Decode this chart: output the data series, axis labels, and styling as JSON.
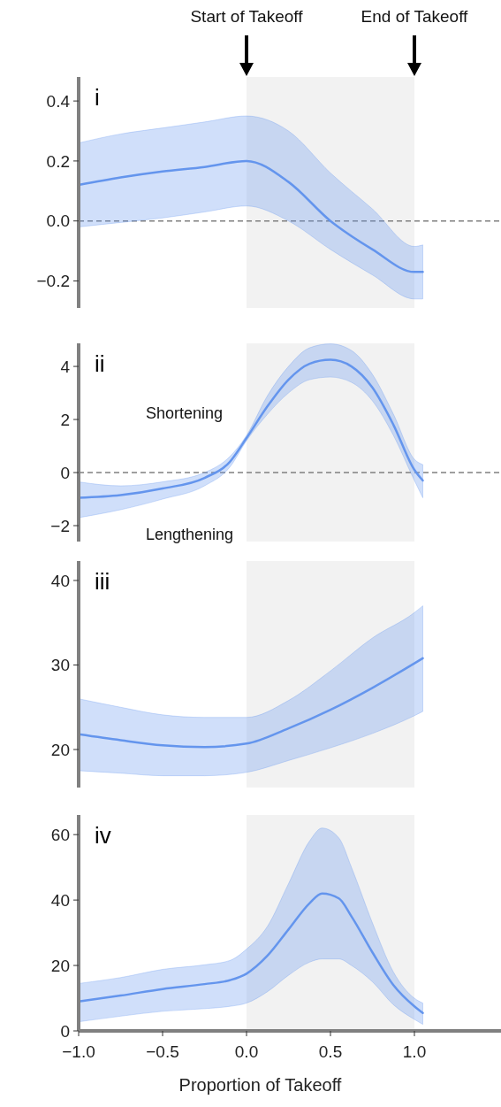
{
  "chart_data": [
    {
      "type": "line",
      "xlim": [
        -1,
        1.5
      ],
      "ylim": [
        -0.29,
        0.48
      ],
      "yticks": [
        {
          "value": -0.2,
          "label": "−0.2"
        },
        {
          "value": 0,
          "label": "0.0"
        },
        0.2,
        0.4
      ],
      "tick_labels": "y",
      "grid": false,
      "bands": [
        {
          "axis": "x",
          "from": 0,
          "to": 1,
          "color": "#f2f2f2"
        }
      ],
      "ref_lines": [
        {
          "axis": "y",
          "value": 0,
          "color": "#808080",
          "line_style": "dashed"
        }
      ],
      "annotations": [
        "i",
        "Start of Takeoff",
        "End of Takeoff"
      ],
      "series": [
        {
          "color": "#6495ed",
          "x": [
            -1,
            -0.75,
            -0.5,
            -0.25,
            0,
            0.25,
            0.5,
            0.75,
            1,
            1.05
          ],
          "values": [
            0.12,
            0.145,
            0.165,
            0.18,
            0.2,
            0.13,
            0.0,
            -0.095,
            -0.17,
            -0.17
          ],
          "upper": [
            0.26,
            0.29,
            0.31,
            0.33,
            0.35,
            0.3,
            0.16,
            0.04,
            -0.085,
            -0.08
          ],
          "lower": [
            -0.02,
            -0.005,
            0.01,
            0.03,
            0.05,
            0.0,
            -0.095,
            -0.18,
            -0.26,
            -0.26
          ]
        }
      ]
    },
    {
      "type": "line",
      "xlim": [
        -1,
        1.5
      ],
      "ylim": [
        -2.6,
        4.87
      ],
      "yticks": [
        {
          "value": -2,
          "label": "−2"
        },
        0,
        2,
        4
      ],
      "tick_labels": "y",
      "grid": false,
      "bands": [
        {
          "axis": "x",
          "from": 0,
          "to": 1,
          "color": "#f2f2f2"
        }
      ],
      "ref_lines": [
        {
          "axis": "y",
          "value": 0,
          "color": "#808080",
          "line_style": "dashed"
        }
      ],
      "annotations": [
        "ii",
        "Shortening",
        "Lengthening"
      ],
      "series": [
        {
          "color": "#6495ed",
          "x": [
            -1,
            -0.75,
            -0.5,
            -0.25,
            -0.1,
            0,
            0.125,
            0.25,
            0.375,
            0.5,
            0.625,
            0.75,
            0.875,
            1,
            1.05
          ],
          "values": [
            -0.95,
            -0.85,
            -0.6,
            -0.2,
            0.4,
            1.3,
            2.5,
            3.5,
            4.1,
            4.25,
            4.0,
            3.2,
            1.8,
            0.1,
            -0.3
          ],
          "upper": [
            -0.35,
            -0.5,
            -0.35,
            0,
            0.6,
            1.4,
            2.9,
            4.0,
            4.7,
            4.85,
            4.6,
            3.7,
            2.2,
            0.5,
            0.3
          ],
          "lower": [
            -1.7,
            -1.4,
            -1.0,
            -0.5,
            0.2,
            1.2,
            2.2,
            3.0,
            3.5,
            3.6,
            3.4,
            2.7,
            1.4,
            -0.3,
            -0.95
          ]
        }
      ]
    },
    {
      "type": "line",
      "xlim": [
        -1,
        1.5
      ],
      "ylim": [
        15.5,
        42.3
      ],
      "yticks": [
        20,
        30,
        40
      ],
      "tick_labels": "y",
      "grid": false,
      "bands": [
        {
          "axis": "x",
          "from": 0,
          "to": 1,
          "color": "#f2f2f2"
        }
      ],
      "annotations": [
        "iii"
      ],
      "series": [
        {
          "color": "#6495ed",
          "x": [
            -1,
            -0.75,
            -0.5,
            -0.25,
            0,
            0.25,
            0.5,
            0.75,
            1,
            1.05
          ],
          "values": [
            21.8,
            21.1,
            20.5,
            20.3,
            20.7,
            22.5,
            24.7,
            27.3,
            30.2,
            30.8
          ],
          "upper": [
            26,
            25,
            24.1,
            23.8,
            23.8,
            25.8,
            29.3,
            33.2,
            36.2,
            37
          ],
          "lower": [
            17.5,
            17.2,
            16.9,
            16.9,
            17.3,
            18.7,
            20.2,
            21.9,
            24,
            24.5
          ]
        }
      ]
    },
    {
      "type": "line",
      "xlim": [
        -1,
        1.5
      ],
      "ylim": [
        0,
        66
      ],
      "yticks": [
        0,
        20,
        40,
        60
      ],
      "xticks": [
        {
          "value": -1,
          "label": "−1.0"
        },
        {
          "value": -0.5,
          "label": "−0.5"
        },
        {
          "value": 0,
          "label": "0.0"
        },
        0.5,
        {
          "value": 1,
          "label": "1.0"
        }
      ],
      "xlabel": "Proportion of Takeoff",
      "grid": false,
      "bands": [
        {
          "axis": "x",
          "from": 0,
          "to": 1,
          "color": "#f2f2f2"
        }
      ],
      "annotations": [
        "iv"
      ],
      "series": [
        {
          "color": "#6495ed",
          "x": [
            -1,
            -0.75,
            -0.5,
            -0.25,
            -0.1,
            0,
            0.125,
            0.25,
            0.375,
            0.45,
            0.55,
            0.625,
            0.75,
            0.875,
            1,
            1.05
          ],
          "values": [
            9,
            10.8,
            12.8,
            14.3,
            15.5,
            17.5,
            23,
            31,
            39,
            42,
            40.5,
            35,
            24,
            14,
            7.5,
            5.5
          ],
          "upper": [
            14.5,
            16.3,
            18.8,
            20.2,
            21.5,
            25,
            32,
            45,
            58,
            62,
            59,
            50,
            33,
            18,
            10,
            8.5
          ],
          "lower": [
            2.8,
            4.5,
            6,
            6.8,
            7.5,
            8.5,
            12,
            17,
            21,
            22,
            22,
            20,
            15,
            8,
            3.5,
            2
          ]
        }
      ]
    }
  ]
}
